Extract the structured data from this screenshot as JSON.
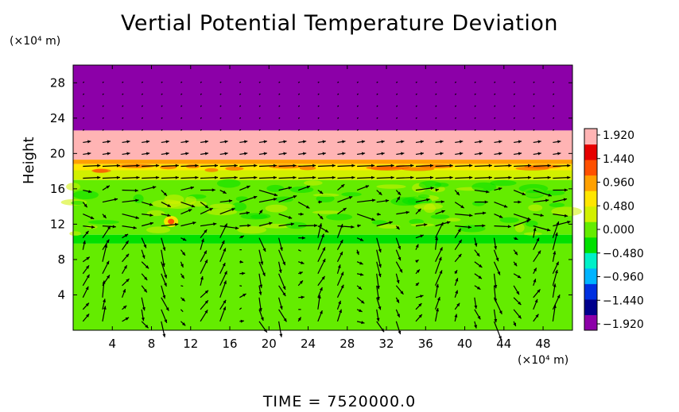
{
  "chart_data": {
    "type": "heatmap",
    "title": "Vertial Potential Temperature Deviation",
    "ylabel": "Height",
    "x_unit": "(×10⁴ m)",
    "y_unit": "(×10⁴ m)",
    "footer": "TIME  =  7520000.0",
    "xlim": [
      0,
      51
    ],
    "ylim": [
      0,
      30
    ],
    "x_ticks": [
      4,
      8,
      12,
      16,
      20,
      24,
      28,
      32,
      36,
      40,
      44,
      48
    ],
    "y_ticks": [
      4,
      8,
      12,
      16,
      20,
      24,
      28
    ],
    "grid": false,
    "colorbar": {
      "placement": "right",
      "min": -1.92,
      "max": 1.92,
      "labels": [
        "1.920",
        "1.440",
        "0.960",
        "0.480",
        "0.000",
        "−0.480",
        "−0.960",
        "−1.440",
        "−1.920"
      ],
      "colors": [
        "#8c00a8",
        "#00008c",
        "#0030e0",
        "#00b4ff",
        "#00f0c8",
        "#00e000",
        "#64ec00",
        "#d2f000",
        "#ffe600",
        "#ffa000",
        "#ff5000",
        "#e60000",
        "#ffb4b4"
      ]
    },
    "bands": [
      {
        "y0": 22.6,
        "y1": 30,
        "value": -1.92
      },
      {
        "y0": 19.3,
        "y1": 22.6,
        "value": 1.92
      },
      {
        "y0": 18.8,
        "y1": 19.3,
        "value": 1.0
      },
      {
        "y0": 18.1,
        "y1": 18.8,
        "value": 0.55
      },
      {
        "y0": 17.0,
        "y1": 18.1,
        "value": 0.25
      },
      {
        "y0": 10.8,
        "y1": 17.0,
        "value": 0.05
      },
      {
        "y0": 9.8,
        "y1": 10.8,
        "value": -0.4
      },
      {
        "y0": 0,
        "y1": 9.8,
        "value": 0.0
      }
    ],
    "vector_field": "wind vectors"
  }
}
